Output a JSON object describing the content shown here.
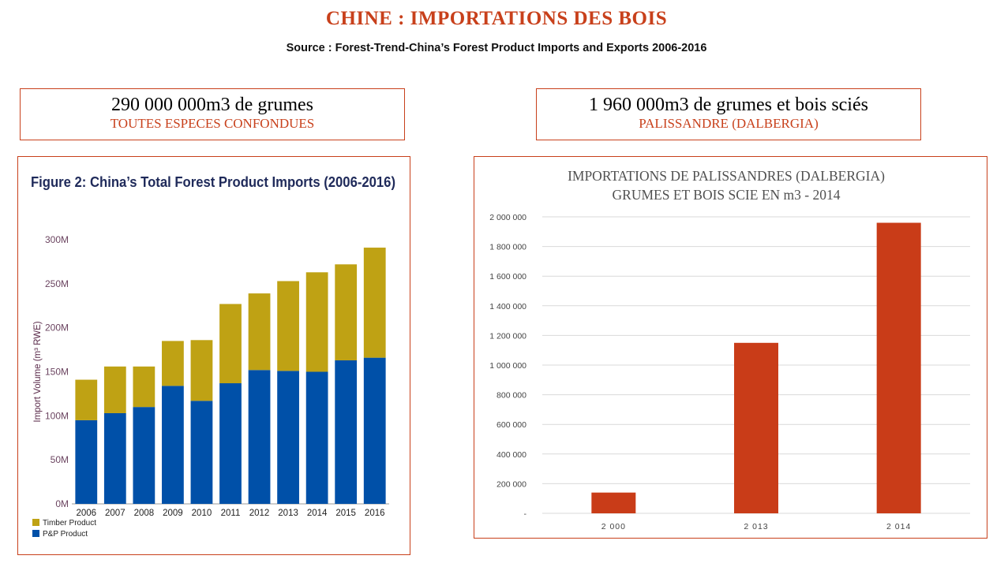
{
  "page": {
    "title": "CHINE : IMPORTATIONS DES BOIS",
    "source": "Source : Forest-Trend-China’s Forest Product Imports and Exports 2006-2016"
  },
  "boxes": {
    "left": {
      "main": "290 000 000m3 de grumes",
      "sub": "TOUTES ESPECES CONFONDUES"
    },
    "right": {
      "main": "1 960 000m3 de grumes et bois sciés",
      "sub": "PALISSANDRE (DALBERGIA)"
    }
  },
  "chart_data": [
    {
      "type": "bar",
      "stacked": true,
      "title": "Figure 2: China’s Total Forest Product Imports (2006-2016)",
      "ylabel": "Import Volume (m³ RWE)",
      "xlabel": "",
      "ylim": [
        0,
        300
      ],
      "ytick_values": [
        0,
        50,
        100,
        150,
        200,
        250,
        300
      ],
      "ytick_labels": [
        "0M",
        "50M",
        "100M",
        "150M",
        "200M",
        "250M",
        "300M"
      ],
      "categories": [
        "2006",
        "2007",
        "2008",
        "2009",
        "2010",
        "2011",
        "2012",
        "2013",
        "2014",
        "2015",
        "2016"
      ],
      "series": [
        {
          "name": "P&P Product",
          "color": "#0050a8",
          "values": [
            95,
            103,
            110,
            134,
            117,
            137,
            152,
            151,
            150,
            163,
            166
          ]
        },
        {
          "name": "Timber Product",
          "color": "#bfa214",
          "values": [
            46,
            53,
            46,
            51,
            69,
            90,
            87,
            102,
            113,
            109,
            125
          ]
        }
      ],
      "legend_position": "bottom-left",
      "grid": false
    },
    {
      "type": "bar",
      "title": "IMPORTATIONS DE PALISSANDRES (DALBERGIA)",
      "subtitle": "GRUMES ET BOIS SCIE EN m3 - 2014",
      "xlabel": "",
      "ylabel": "",
      "ylim": [
        0,
        2000000
      ],
      "ytick_values": [
        0,
        200000,
        400000,
        600000,
        800000,
        1000000,
        1200000,
        1400000,
        1600000,
        1800000,
        2000000
      ],
      "ytick_labels": [
        "-",
        "200 000",
        "400 000",
        "600 000",
        "800 000",
        "1 000 000",
        "1 200 000",
        "1 400 000",
        "1 600 000",
        "1 800 000",
        "2 000 000"
      ],
      "categories": [
        "2 000",
        "2 013",
        "2 014"
      ],
      "values": [
        140000,
        1150000,
        1960000
      ],
      "color": "#c93c18",
      "grid": true
    }
  ]
}
